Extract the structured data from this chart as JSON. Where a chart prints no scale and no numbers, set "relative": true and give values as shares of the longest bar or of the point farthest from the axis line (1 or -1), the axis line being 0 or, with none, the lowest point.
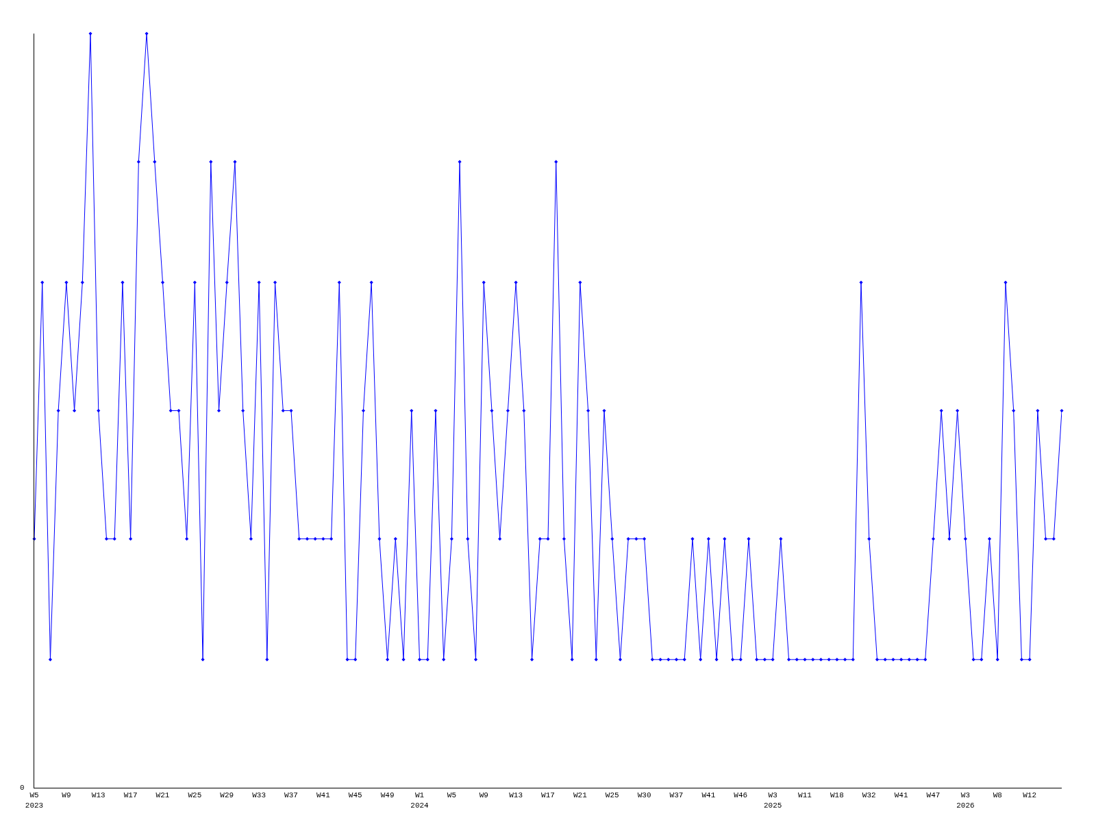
{
  "chart_data": {
    "type": "line",
    "relative": true,
    "marker": "diamond",
    "line_style": "solid",
    "categories": [
      "W5\n2023",
      null,
      null,
      null,
      "W9",
      null,
      null,
      null,
      "W13",
      null,
      null,
      null,
      "W17",
      null,
      null,
      null,
      "W21",
      null,
      null,
      null,
      "W25",
      null,
      null,
      null,
      "W29",
      null,
      null,
      null,
      "W33",
      null,
      null,
      null,
      "W37",
      null,
      null,
      null,
      "W41",
      null,
      null,
      null,
      "W45",
      null,
      null,
      null,
      "W49",
      null,
      null,
      null,
      "W1\n2024",
      null,
      null,
      null,
      "W5",
      null,
      null,
      null,
      "W9",
      null,
      null,
      null,
      "W13",
      null,
      null,
      null,
      "W17",
      null,
      null,
      null,
      "W21",
      null,
      null,
      null,
      "W25",
      null,
      null,
      null,
      "W30",
      null,
      null,
      null,
      "W37",
      null,
      null,
      null,
      "W41",
      null,
      null,
      null,
      "W46",
      null,
      null,
      null,
      "W3\n2025",
      null,
      null,
      null,
      "W11",
      null,
      null,
      null,
      "W18",
      null,
      null,
      null,
      "W32",
      null,
      null,
      null,
      "W41",
      null,
      null,
      null,
      "W47",
      null,
      null,
      null,
      "W3\n2026",
      null,
      null,
      null,
      "W8",
      null,
      null,
      null,
      "W12",
      null,
      null,
      null,
      null
    ],
    "series": [
      {
        "color": "#0000ff",
        "values": [
          0.33,
          0.67,
          0.17,
          0.5,
          0.67,
          0.5,
          0.67,
          1,
          0.5,
          0.33,
          0.33,
          0.67,
          0.33,
          0.83,
          1,
          0.83,
          0.67,
          0.5,
          0.5,
          0.33,
          0.67,
          0.17,
          0.83,
          0.5,
          0.67,
          0.83,
          0.5,
          0.33,
          0.67,
          0.17,
          0.67,
          0.5,
          0.5,
          0.33,
          0.33,
          0.33,
          0.33,
          0.33,
          0.67,
          0.17,
          0.17,
          0.5,
          0.67,
          0.33,
          0.17,
          0.33,
          0.17,
          0.5,
          0.17,
          0.17,
          0.5,
          0.17,
          0.33,
          0.83,
          0.33,
          0.17,
          0.67,
          0.5,
          0.33,
          0.5,
          0.67,
          0.5,
          0.17,
          0.33,
          0.33,
          0.83,
          0.33,
          0.17,
          0.67,
          0.5,
          0.17,
          0.5,
          0.33,
          0.17,
          0.33,
          0.33,
          0.33,
          0.17,
          0.17,
          0.17,
          0.17,
          0.17,
          0.33,
          0.17,
          0.33,
          0.17,
          0.33,
          0.17,
          0.17,
          0.33,
          0.17,
          0.17,
          0.17,
          0.33,
          0.17,
          0.17,
          0.17,
          0.17,
          0.17,
          0.17,
          0.17,
          0.17,
          0.17,
          0.67,
          0.33,
          0.17,
          0.17,
          0.17,
          0.17,
          0.17,
          0.17,
          0.17,
          0.33,
          0.5,
          0.33,
          0.5,
          0.33,
          0.17,
          0.17,
          0.33,
          0.17,
          0.67,
          0.5,
          0.17,
          0.17,
          0.5,
          0.33,
          0.33,
          0.5
        ]
      }
    ],
    "annotations": [
      "0"
    ]
  }
}
